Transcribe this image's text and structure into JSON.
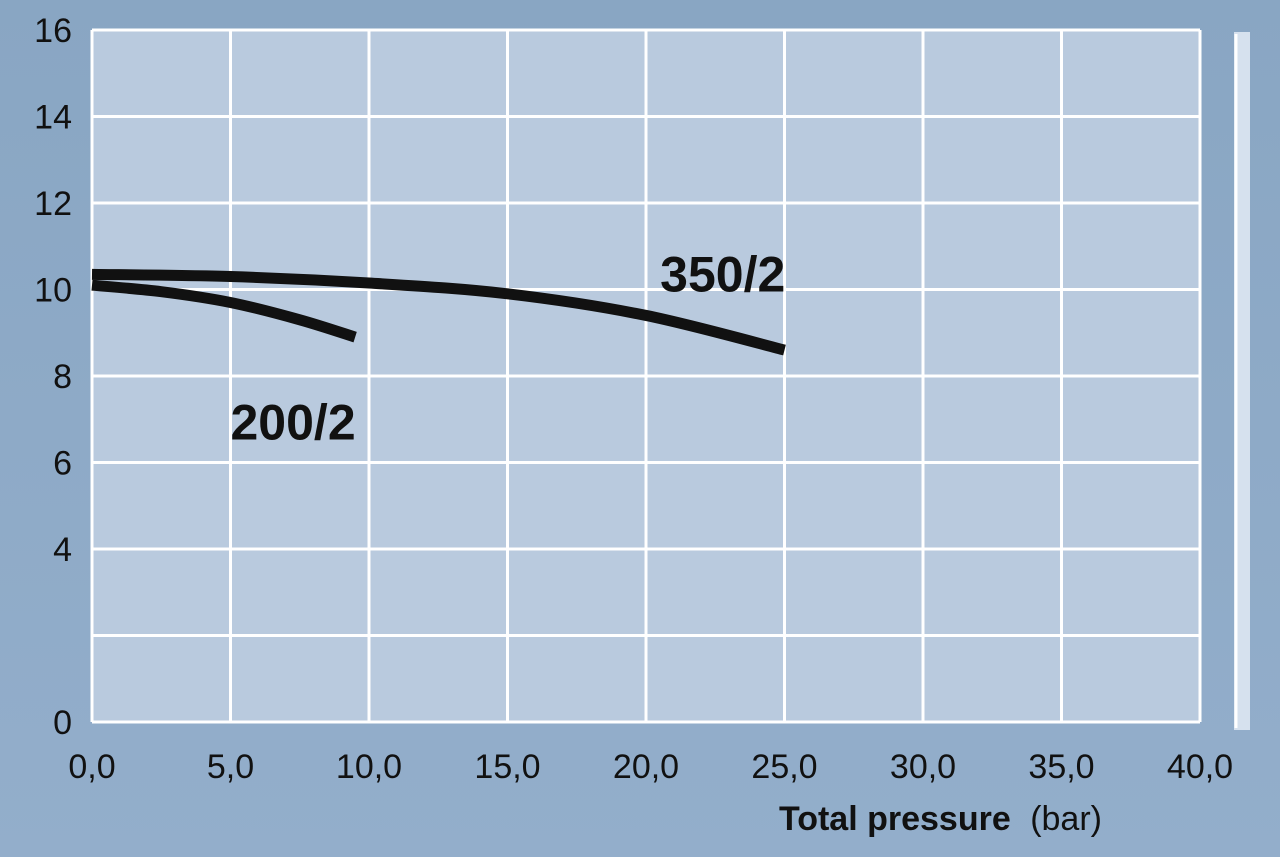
{
  "chart_data": {
    "type": "line",
    "xlabel": "Total pressure",
    "xlabel_unit": "(bar)",
    "ylabel": "",
    "xlim": [
      0,
      40
    ],
    "ylim": [
      0,
      16
    ],
    "grid": true,
    "x_ticks": [
      "0,0",
      "5,0",
      "10,0",
      "15,0",
      "20,0",
      "25,0",
      "30,0",
      "35,0",
      "40,0"
    ],
    "y_ticks": [
      "0",
      "4",
      "6",
      "8",
      "10",
      "12",
      "14",
      "16"
    ],
    "y_tick_values": [
      0,
      4,
      6,
      8,
      10,
      12,
      14,
      16
    ],
    "series": [
      {
        "name": "350/2",
        "x": [
          0,
          5,
          10,
          15,
          20,
          25
        ],
        "y": [
          10.35,
          10.3,
          10.15,
          9.9,
          9.4,
          8.6
        ]
      },
      {
        "name": "200/2",
        "x": [
          0,
          2.5,
          5,
          7.5,
          9.5
        ],
        "y": [
          10.1,
          9.95,
          9.7,
          9.3,
          8.9
        ]
      }
    ],
    "colors": {
      "plot_background": "#b9cade",
      "grid": "#ffffff",
      "line": "#111111"
    }
  }
}
